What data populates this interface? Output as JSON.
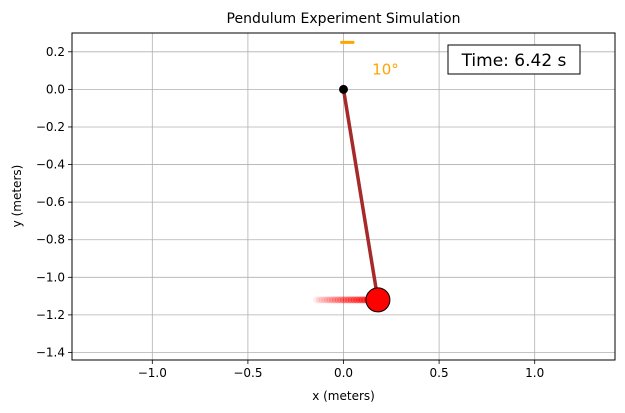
{
  "chart_data": {
    "type": "scatter",
    "title": "Pendulum Experiment Simulation",
    "xlabel": "x (meters)",
    "ylabel": "y (meters)",
    "xlim": [
      -1.42,
      1.42
    ],
    "ylim": [
      -1.44,
      0.3
    ],
    "xticks": [
      -1.0,
      -0.5,
      0.0,
      0.5,
      1.0
    ],
    "xtick_labels": [
      "−1.0",
      "−0.5",
      "0.0",
      "0.5",
      "1.0"
    ],
    "yticks": [
      0.2,
      0.0,
      -0.2,
      -0.4,
      -0.6,
      -0.8,
      -1.0,
      -1.2,
      -1.4
    ],
    "ytick_labels": [
      "0.2",
      "0.0",
      "−0.2",
      "−0.4",
      "−0.6",
      "−0.8",
      "−1.0",
      "−1.2",
      "−1.4"
    ],
    "grid": true,
    "pivot": {
      "x": 0.0,
      "y": 0.0
    },
    "bob": {
      "x": 0.18,
      "y": -1.12
    },
    "trail": {
      "x_start": -0.14,
      "x_end": 0.18,
      "y": -1.12
    },
    "angle_label": "10°",
    "angle_label_pos": {
      "x": 0.15,
      "y": 0.08
    },
    "angle_marker": {
      "x_start": -0.01,
      "x_end": 0.05,
      "y": 0.25
    },
    "time_label": "Time: 6.42 s",
    "colors": {
      "rod": "#a52a2a",
      "bob": "#ff0000",
      "pivot": "#000000",
      "angle": "#ffa500",
      "grid": "#b0b0b0"
    }
  }
}
